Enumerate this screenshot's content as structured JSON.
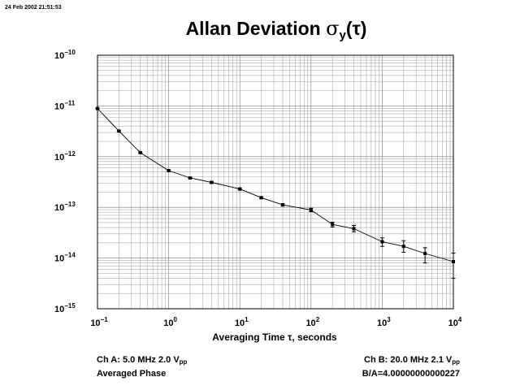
{
  "timestamp": "24 Feb 2002 21:51:53",
  "footer": {
    "ch_a": {
      "text": "Ch A: 5.0 MHz 2.0 V",
      "sub": "pp"
    },
    "averaged": "Averaged Phase",
    "ch_b": {
      "text": "Ch B: 20.0 MHz 2.1 V",
      "sub": "pp"
    },
    "ratio": "B/A=4.00000000000227"
  },
  "chart_data": {
    "type": "line",
    "title": "Allan Deviation σy(τ)",
    "title_main": "Allan Deviation",
    "title_sigma": "σ",
    "title_sub": "y",
    "title_tail": "(τ)",
    "xlabel": "Averaging Time τ, seconds",
    "x_scale": "log",
    "y_scale": "log",
    "xlim": [
      0.1,
      10000
    ],
    "ylim": [
      1e-15,
      1e-10
    ],
    "grid": true,
    "x_ticks": [
      {
        "base": "10",
        "exp": "−1",
        "value": 0.1
      },
      {
        "base": "10",
        "exp": "0",
        "value": 1
      },
      {
        "base": "10",
        "exp": "1",
        "value": 10
      },
      {
        "base": "10",
        "exp": "2",
        "value": 100
      },
      {
        "base": "10",
        "exp": "3",
        "value": 1000
      },
      {
        "base": "10",
        "exp": "4",
        "value": 10000
      }
    ],
    "y_ticks": [
      {
        "base": "10",
        "exp": "−10",
        "value": 1e-10
      },
      {
        "base": "10",
        "exp": "−11",
        "value": 1e-11
      },
      {
        "base": "10",
        "exp": "−12",
        "value": 1e-12
      },
      {
        "base": "10",
        "exp": "−13",
        "value": 1e-13
      },
      {
        "base": "10",
        "exp": "−14",
        "value": 1e-14
      },
      {
        "base": "10",
        "exp": "−15",
        "value": 1e-15
      }
    ],
    "series": [
      {
        "x": [
          0.1,
          0.2,
          0.4,
          1,
          2,
          4,
          10,
          20,
          40,
          100,
          200,
          400,
          1000,
          2000,
          4000,
          10000
        ],
        "y": [
          8.9e-12,
          3.2e-12,
          1.2e-12,
          5.3e-13,
          3.8e-13,
          3.1e-13,
          2.3e-13,
          1.55e-13,
          1.12e-13,
          8.9e-14,
          4.6e-14,
          3.8e-14,
          2.1e-14,
          1.7e-14,
          1.23e-14,
          8.5e-15
        ],
        "err_low": [
          8.7e-12,
          3.1e-12,
          1.17e-12,
          5.1e-13,
          3.7e-13,
          3e-13,
          2.2e-13,
          1.48e-13,
          1.06e-13,
          8.2e-14,
          4.1e-14,
          3.3e-14,
          1.7e-14,
          1.3e-14,
          8e-15,
          4e-15
        ],
        "err_high": [
          9.1e-12,
          3.3e-12,
          1.23e-12,
          5.5e-13,
          3.9e-13,
          3.2e-13,
          2.4e-13,
          1.62e-13,
          1.18e-13,
          9.6e-14,
          5.1e-14,
          4.4e-14,
          2.5e-14,
          2.2e-14,
          1.6e-14,
          1.25e-14
        ]
      }
    ]
  }
}
